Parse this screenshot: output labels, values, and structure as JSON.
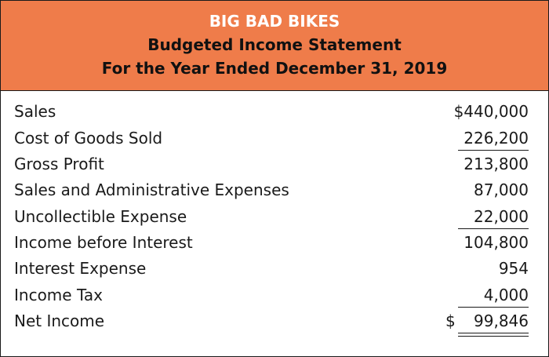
{
  "header": {
    "company": "BIG BAD BIKES",
    "title": "Budgeted Income Statement",
    "period": "For the Year Ended December 31, 2019"
  },
  "rows": [
    {
      "label": "Sales",
      "amount": "$440,000"
    },
    {
      "label": "Cost of Goods Sold",
      "amount": "226,200"
    },
    {
      "label": "Gross Profit",
      "amount": "213,800"
    },
    {
      "label": "Sales and Administrative Expenses",
      "amount": "87,000"
    },
    {
      "label": "Uncollectible Expense",
      "amount": "22,000"
    },
    {
      "label": "Income before Interest",
      "amount": "104,800"
    },
    {
      "label": "Interest Expense",
      "amount": "954"
    },
    {
      "label": "Income Tax",
      "amount": "4,000"
    },
    {
      "label": "Net Income",
      "currency": "$",
      "amount": "99,846"
    }
  ]
}
